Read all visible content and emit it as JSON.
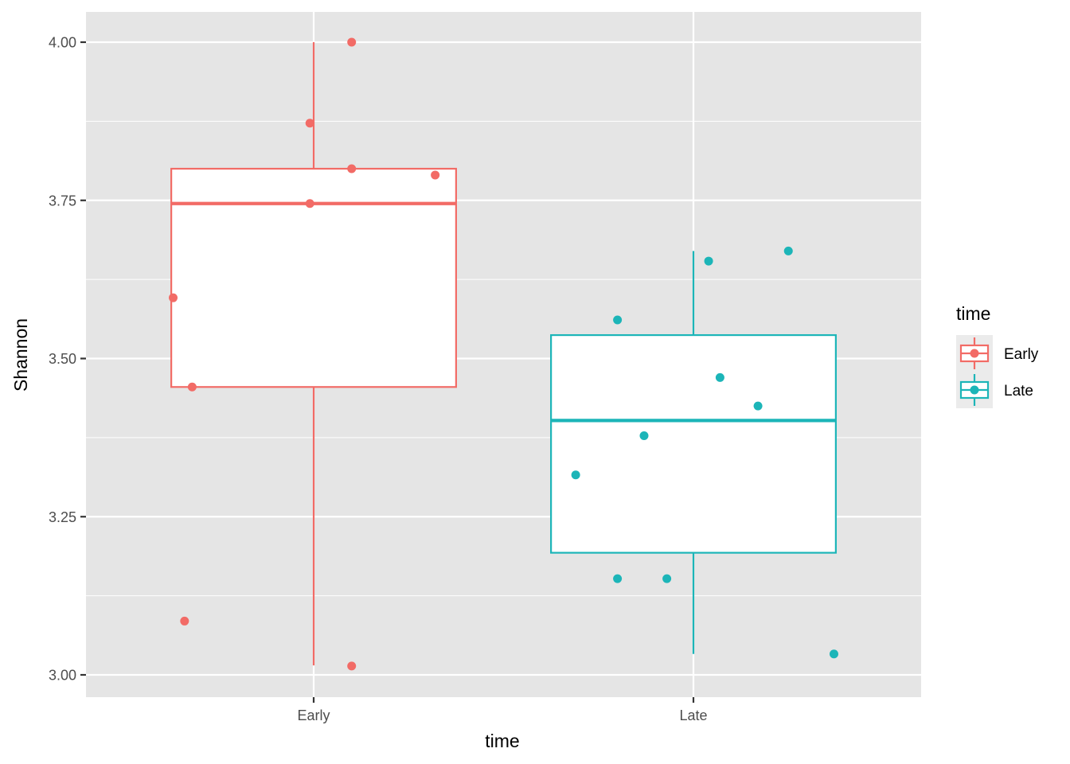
{
  "chart_data": {
    "type": "boxplot",
    "title": "",
    "xlabel": "time",
    "ylabel": "Shannon",
    "ylim": [
      2.95,
      4.05
    ],
    "yticks": [
      3.0,
      3.25,
      3.5,
      3.75,
      4.0
    ],
    "ytick_labels": [
      "3.00",
      "3.25",
      "3.50",
      "3.75",
      "4.00"
    ],
    "categories": [
      "Early",
      "Late"
    ],
    "grid": true,
    "legend_position": "right",
    "legend": {
      "title": "time",
      "entries": [
        {
          "label": "Early",
          "color": "#F8766D"
        },
        {
          "label": "Late",
          "color": "#00BFC4"
        }
      ]
    },
    "boxes": [
      {
        "name": "Early",
        "color": "#F26B66",
        "whisker_low": 3.015,
        "q1": 3.455,
        "median": 3.745,
        "q3": 3.8,
        "whisker_high": 4.0,
        "points": [
          {
            "x_jitter": -0.37,
            "y": 3.596
          },
          {
            "x_jitter": -0.32,
            "y": 3.455
          },
          {
            "x_jitter": -0.34,
            "y": 3.085
          },
          {
            "x_jitter": -0.01,
            "y": 3.872
          },
          {
            "x_jitter": -0.01,
            "y": 3.745
          },
          {
            "x_jitter": 0.1,
            "y": 4.0
          },
          {
            "x_jitter": 0.1,
            "y": 3.8
          },
          {
            "x_jitter": 0.1,
            "y": 3.014
          },
          {
            "x_jitter": 0.32,
            "y": 3.79
          }
        ]
      },
      {
        "name": "Late",
        "color": "#1CB5B8",
        "whisker_low": 3.033,
        "q1": 3.193,
        "median": 3.402,
        "q3": 3.537,
        "whisker_high": 3.67,
        "points": [
          {
            "x_jitter": -0.31,
            "y": 3.316
          },
          {
            "x_jitter": -0.2,
            "y": 3.561
          },
          {
            "x_jitter": -0.2,
            "y": 3.152
          },
          {
            "x_jitter": -0.13,
            "y": 3.378
          },
          {
            "x_jitter": -0.07,
            "y": 3.152
          },
          {
            "x_jitter": 0.04,
            "y": 3.654
          },
          {
            "x_jitter": 0.07,
            "y": 3.47
          },
          {
            "x_jitter": 0.17,
            "y": 3.425
          },
          {
            "x_jitter": 0.25,
            "y": 3.67
          },
          {
            "x_jitter": 0.37,
            "y": 3.033
          }
        ]
      }
    ]
  }
}
